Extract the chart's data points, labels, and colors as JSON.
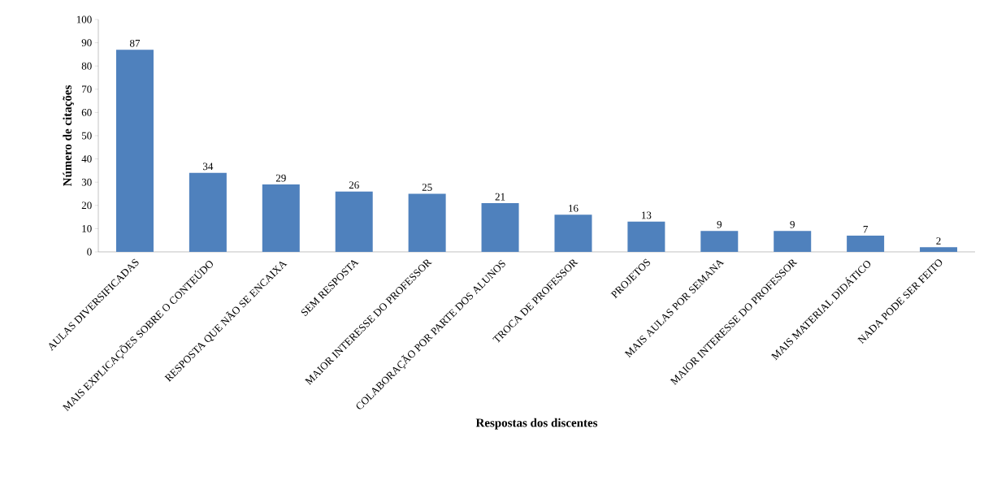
{
  "chart_data": {
    "type": "bar",
    "xlabel": "Respostas dos discentes",
    "ylabel": "Número de citações",
    "categories": [
      "AULAS DIVERSIFICADAS",
      "MAIS EXPLICAÇÕES SOBRE O CONTEÚDO",
      "RESPOSTA QUE NÃO SE ENCAIXA",
      "SEM RESPOSTA",
      "MAIOR INTERESSE DO PROFESSOR",
      "COLABORAÇÃO POR PARTE DOS ALUNOS",
      "TROCA DE PROFESSOR",
      "PROJETOS",
      "MAIS AULAS POR SEMANA",
      "MAIOR INTERESSE DO PROFESSOR",
      "MAIS MATERIAL DIDÁTICO",
      "NADA PODE SER FEITO"
    ],
    "values": [
      87,
      34,
      29,
      26,
      25,
      21,
      16,
      13,
      9,
      9,
      7,
      2
    ],
    "color": "#4f81bd",
    "ylim": [
      0,
      100
    ],
    "yticks": [
      0,
      10,
      20,
      30,
      40,
      50,
      60,
      70,
      80,
      90,
      100
    ],
    "data_labels": true,
    "grid": false
  }
}
